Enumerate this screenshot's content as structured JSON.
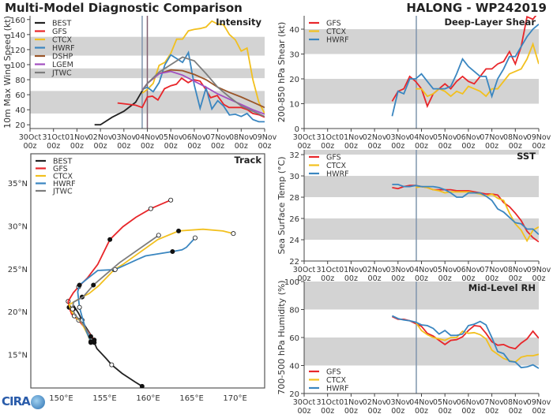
{
  "header": {
    "title": "Multi-Model Diagnostic Comparison",
    "storm": "HALONG - WP242019"
  },
  "logo": "CIRA",
  "colors": {
    "BEST": "#222222",
    "GFS": "#e8262a",
    "CTCX": "#f2c01e",
    "HWRF": "#3a86c0",
    "DSHP": "#9a5528",
    "LGEM": "#a24fc0",
    "JTWC": "#7d7d7d",
    "band": "#d3d3d3",
    "vline_blue": "#7f95ad",
    "vline_purple": "#806070"
  },
  "x_ticks": [
    {
      "d": "30Oct",
      "h": "00z"
    },
    {
      "d": "31Oct",
      "h": "00z"
    },
    {
      "d": "01Nov",
      "h": "00z"
    },
    {
      "d": "02Nov",
      "h": "00z"
    },
    {
      "d": "03Nov",
      "h": "00z"
    },
    {
      "d": "04Nov",
      "h": "00z"
    },
    {
      "d": "05Nov",
      "h": "00z"
    },
    {
      "d": "06Nov",
      "h": "00z"
    },
    {
      "d": "07Nov",
      "h": "00z"
    },
    {
      "d": "08Nov",
      "h": "00z"
    },
    {
      "d": "09Nov",
      "h": "00z"
    }
  ],
  "chart_data": [
    {
      "id": "intensity",
      "type": "line",
      "title": "Intensity",
      "xlabel": "",
      "ylabel": "10m Max Wind Speed (kt)",
      "x_units": "days since 30Oct 00z",
      "xlim": [
        0,
        10
      ],
      "ylim": [
        15,
        165
      ],
      "yticks": [
        20,
        40,
        60,
        80,
        100,
        120,
        140,
        160
      ],
      "bands": [
        [
          35,
          65
        ],
        [
          82,
          95
        ],
        [
          112,
          137
        ]
      ],
      "vlines": [
        {
          "x": 4.78,
          "color": "vline_blue"
        },
        {
          "x": 5.0,
          "color": "vline_purple"
        }
      ],
      "legend": "top-left",
      "series": [
        {
          "name": "BEST",
          "x": [
            2.75,
            3.0,
            3.5,
            4.0,
            4.5,
            4.78
          ],
          "y": [
            20,
            20,
            30,
            38,
            50,
            65
          ]
        },
        {
          "name": "GFS",
          "x": [
            3.73,
            4.5,
            4.78,
            5.0,
            5.22,
            5.45,
            5.73,
            6.0,
            6.24,
            6.46,
            6.74,
            6.97,
            7.25,
            7.47,
            7.7,
            7.98,
            8.26,
            8.48,
            8.99,
            9.27,
            9.49,
            9.78,
            10.0
          ],
          "y": [
            49,
            46,
            43,
            57,
            58,
            53,
            68,
            72,
            74,
            82,
            76,
            80,
            78,
            68,
            56,
            59,
            47,
            43,
            43,
            40,
            35,
            33,
            30
          ]
        },
        {
          "name": "CTCX",
          "x": [
            4.78,
            5.0,
            5.25,
            5.5,
            5.75,
            6.0,
            6.25,
            6.5,
            6.75,
            7.0,
            7.25,
            7.5,
            7.75,
            8.0,
            8.25,
            8.5,
            8.75,
            9.0,
            9.25,
            9.5,
            9.75,
            10.0
          ],
          "y": [
            62,
            67,
            75,
            99,
            103,
            115,
            134,
            134,
            145,
            147,
            148,
            150,
            158,
            154,
            153,
            140,
            133,
            118,
            122,
            80,
            50,
            35
          ]
        },
        {
          "name": "HWRF",
          "x": [
            4.78,
            5.0,
            5.25,
            5.5,
            5.75,
            6.0,
            6.25,
            6.5,
            6.75,
            7.0,
            7.25,
            7.5,
            7.75,
            8.0,
            8.25,
            8.5,
            8.75,
            9.0,
            9.25,
            9.5,
            9.75,
            10.0
          ],
          "y": [
            67,
            70,
            64,
            76,
            100,
            113,
            108,
            103,
            116,
            73,
            42,
            69,
            41,
            52,
            45,
            33,
            34,
            31,
            35,
            27,
            24,
            24
          ]
        },
        {
          "name": "DSHP",
          "x": [
            4.78,
            5.0,
            5.5,
            6.0,
            6.5,
            7.0,
            7.5,
            8.0,
            8.5,
            9.0,
            9.5,
            10.0
          ],
          "y": [
            66,
            75,
            88,
            93,
            92,
            87,
            80,
            70,
            63,
            57,
            50,
            43
          ]
        },
        {
          "name": "LGEM",
          "x": [
            4.78,
            5.0,
            5.5,
            6.0,
            6.5,
            7.0,
            7.5,
            8.0,
            8.5,
            9.0,
            9.5,
            10.0
          ],
          "y": [
            66,
            75,
            88,
            91,
            86,
            78,
            70,
            61,
            54,
            47,
            40,
            34
          ]
        },
        {
          "name": "JTWC",
          "x": [
            4.78,
            5.0,
            5.5,
            6.0,
            6.5,
            7.0,
            7.5,
            8.0,
            8.5,
            9.0,
            9.5,
            10.0
          ],
          "y": [
            65,
            75,
            90,
            100,
            110,
            105,
            88,
            70,
            57,
            45,
            38,
            31
          ]
        }
      ]
    },
    {
      "id": "shear",
      "type": "line",
      "title": "Deep-Layer Shear",
      "xlabel": "",
      "ylabel": "200-850 hPa Shear (kt)",
      "x_units": "days since 30Oct 00z",
      "xlim": [
        0,
        10
      ],
      "ylim": [
        0,
        45.4
      ],
      "yticks": [
        0,
        10,
        20,
        30,
        40
      ],
      "bands": [
        [
          10,
          20
        ],
        [
          30,
          40
        ]
      ],
      "vlines": [
        {
          "x": 4.78,
          "color": "vline_blue"
        }
      ],
      "legend": "top-left",
      "x_start": 3.75,
      "x_step": 0.25,
      "series": [
        {
          "name": "GFS",
          "start": 3.75,
          "y": [
            11,
            15,
            16,
            21,
            19,
            16,
            9,
            14,
            16,
            18,
            16,
            19,
            21,
            19,
            18,
            21,
            24,
            24,
            26,
            27,
            31,
            26,
            33,
            45,
            44,
            47
          ]
        },
        {
          "name": "CTCX",
          "start": 4.75,
          "y": [
            16,
            16,
            13,
            14,
            16,
            15,
            13,
            15,
            14,
            17,
            16,
            15,
            13,
            16,
            16,
            19,
            22,
            23,
            24,
            28,
            34,
            26
          ]
        },
        {
          "name": "HWRF",
          "start": 3.75,
          "y": [
            5,
            15,
            14,
            20,
            20,
            22,
            19,
            16,
            16,
            16,
            17,
            22,
            28,
            25,
            23,
            21,
            21,
            13,
            20,
            24,
            29,
            29,
            33,
            37,
            40,
            42
          ]
        }
      ]
    },
    {
      "id": "sst",
      "type": "line",
      "title": "SST",
      "xlabel": "",
      "ylabel": "Sea Surface Temp (°C)",
      "x_units": "days since 30Oct 00z",
      "xlim": [
        0,
        10
      ],
      "ylim": [
        22,
        32.45
      ],
      "yticks": [
        22,
        24,
        26,
        28,
        30,
        32
      ],
      "bands": [
        [
          24,
          26
        ],
        [
          28,
          30
        ],
        [
          32,
          32.45
        ]
      ],
      "vlines": [
        {
          "x": 4.78,
          "color": "vline_blue"
        }
      ],
      "legend": "top-left",
      "series": [
        {
          "name": "GFS",
          "start": 3.75,
          "y": [
            28.9,
            28.8,
            29.0,
            29.1,
            29.1,
            29.0,
            28.9,
            28.7,
            28.7,
            28.7,
            28.7,
            28.6,
            28.6,
            28.6,
            28.5,
            28.4,
            28.3,
            28.3,
            28.2,
            27.5,
            27.1,
            26.5,
            25.8,
            24.8,
            24.2,
            23.8
          ]
        },
        {
          "name": "CTCX",
          "start": 4.75,
          "y": [
            28.9,
            29.0,
            28.9,
            28.7,
            28.6,
            28.4,
            28.5,
            28.5,
            28.5,
            28.5,
            28.4,
            28.3,
            28.1,
            28.3,
            27.9,
            27.7,
            26.5,
            25.5,
            24.9,
            23.9,
            24.9,
            25.2
          ]
        },
        {
          "name": "HWRF",
          "start": 3.75,
          "y": [
            29.2,
            29.2,
            29.0,
            29.0,
            29.1,
            29.0,
            29.0,
            29.0,
            28.9,
            28.7,
            28.4,
            28.0,
            28.0,
            28.4,
            28.4,
            28.4,
            28.1,
            27.7,
            26.9,
            26.6,
            26.1,
            25.6,
            25.5,
            25.0,
            25.0,
            24.5
          ]
        }
      ]
    },
    {
      "id": "rh",
      "type": "line",
      "title": "Mid-Level RH",
      "xlabel": "",
      "ylabel": "700-500 hPa Humidity (%)",
      "x_units": "days since 30Oct 00z",
      "xlim": [
        0,
        10
      ],
      "ylim": [
        20,
        100
      ],
      "yticks": [
        20,
        40,
        60,
        80,
        100
      ],
      "bands": [
        [
          40,
          60
        ],
        [
          80,
          100
        ]
      ],
      "vlines": [
        {
          "x": 4.78,
          "color": "vline_blue"
        }
      ],
      "legend": "bottom-left",
      "series": [
        {
          "name": "GFS",
          "start": 3.75,
          "y": [
            75,
            73,
            73,
            72,
            70,
            68,
            63,
            61,
            58,
            55,
            58,
            58.5,
            60.5,
            65,
            68.5,
            68,
            63,
            57,
            54.5,
            55,
            53,
            52,
            56,
            59,
            64.5,
            59.5
          ]
        },
        {
          "name": "CTCX",
          "start": 4.75,
          "y": [
            71,
            65,
            62,
            60,
            59,
            58,
            60,
            60,
            64.5,
            63,
            63.5,
            62,
            59,
            51,
            48,
            45,
            43.5,
            42.5,
            46,
            47,
            47,
            48
          ]
        },
        {
          "name": "HWRF",
          "start": 3.75,
          "y": [
            75.5,
            73.5,
            72.5,
            72,
            71,
            69,
            68.5,
            66.5,
            62.5,
            65,
            61.5,
            61.5,
            62.5,
            68.5,
            69.5,
            71.5,
            69,
            60,
            50,
            48.5,
            43,
            42.5,
            38.5,
            39,
            40.5,
            38
          ]
        }
      ]
    },
    {
      "id": "track",
      "type": "line",
      "title": "Track",
      "xlabel": "",
      "ylabel": "",
      "xlim": [
        146.5,
        173.4
      ],
      "ylim": [
        11.1,
        38.4
      ],
      "xticks": [
        {
          "v": 150,
          "label": "150°E"
        },
        {
          "v": 155,
          "label": "155°E"
        },
        {
          "v": 160,
          "label": "160°E"
        },
        {
          "v": 165,
          "label": "165°E"
        },
        {
          "v": 170,
          "label": "170°E"
        }
      ],
      "yticks": [
        {
          "v": 15,
          "label": "15°N"
        },
        {
          "v": 20,
          "label": "20°N"
        },
        {
          "v": 25,
          "label": "25°N"
        },
        {
          "v": 30,
          "label": "30°N"
        },
        {
          "v": 35,
          "label": "35°N"
        }
      ],
      "legend": "top-left",
      "series": [
        {
          "name": "BEST",
          "lon": [
            159.3,
            158.5,
            157.0,
            155.8,
            155.2,
            154.1,
            153.8,
            153.4,
            152.7,
            152.4,
            152.0,
            151.5,
            151.4,
            150.9,
            150.8
          ],
          "lat": [
            11.3,
            11.8,
            12.8,
            13.8,
            14.5,
            15.7,
            16.4,
            17.3,
            18.4,
            19.0,
            19.8,
            20.6,
            20.3,
            20.6,
            21.2
          ]
        },
        {
          "name": "GFS",
          "lon": [
            153.8,
            153.3,
            152.4,
            152.0,
            151.5,
            151.2,
            150.9,
            150.8,
            151.4,
            152.0,
            153.0,
            154.2,
            155.6,
            157.1,
            158.6,
            160.3,
            162.6
          ],
          "lat": [
            16.7,
            17.4,
            18.5,
            19.0,
            19.4,
            19.7,
            20.5,
            21.2,
            22.2,
            22.9,
            23.9,
            25.5,
            28.4,
            29.9,
            31.0,
            32.0,
            33.0
          ]
        },
        {
          "name": "CTCX",
          "lon": [
            153.4,
            153.0,
            152.3,
            151.5,
            151.2,
            150.9,
            152.4,
            153.2,
            154.3,
            156.1,
            157.1,
            161.1,
            163.5,
            166.3,
            168.6,
            169.8
          ],
          "lat": [
            16.4,
            17.4,
            18.8,
            19.5,
            20.0,
            20.8,
            21.7,
            22.1,
            23.0,
            24.9,
            25.5,
            28.4,
            29.4,
            29.6,
            29.4,
            29.1
          ]
        },
        {
          "name": "HWRF",
          "lon": [
            153.4,
            152.9,
            152.4,
            152.1,
            152.0,
            151.9,
            152.1,
            153.2,
            154.2,
            156.2,
            158.8,
            159.7,
            162.8,
            163.9,
            164.4,
            165.4
          ],
          "lat": [
            16.5,
            17.7,
            19.4,
            20.5,
            21.4,
            22.3,
            23.1,
            24.0,
            24.8,
            24.9,
            26.1,
            26.5,
            27.0,
            27.2,
            27.5,
            28.6
          ]
        },
        {
          "name": "JTWC",
          "lon": [
            153.4,
            152.4,
            151.6,
            151.3,
            151.4,
            152.5,
            153.7,
            156.7,
            161.2
          ],
          "lat": [
            17.1,
            18.7,
            19.6,
            20.3,
            21.1,
            21.7,
            23.1,
            25.7,
            28.9
          ]
        }
      ]
    }
  ]
}
